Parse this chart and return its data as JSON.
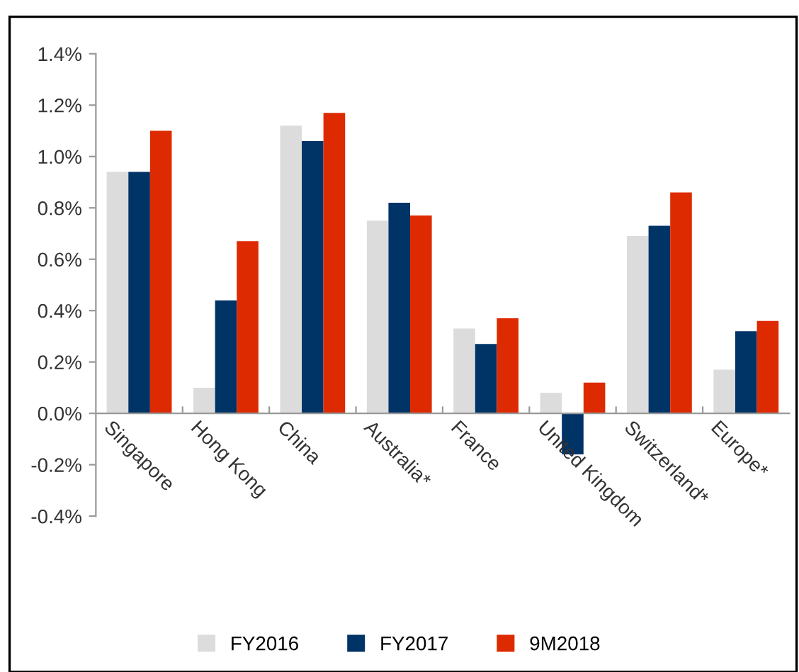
{
  "chart_data": {
    "type": "bar",
    "categories": [
      "Singapore",
      "Hong Kong",
      "China",
      "Australia*",
      "France",
      "United Kingdom",
      "Switzerland*",
      "Europe*"
    ],
    "series": [
      {
        "name": "FY2016",
        "color": "#dcdcdc",
        "values": [
          0.94,
          0.1,
          1.12,
          0.75,
          0.33,
          0.08,
          0.69,
          0.17
        ]
      },
      {
        "name": "FY2017",
        "color": "#003366",
        "values": [
          0.94,
          0.44,
          1.06,
          0.82,
          0.27,
          -0.16,
          0.73,
          0.32
        ]
      },
      {
        "name": "9M2018",
        "color": "#dd2a00",
        "values": [
          1.1,
          0.67,
          1.17,
          0.77,
          0.37,
          0.12,
          0.86,
          0.36
        ]
      }
    ],
    "ylim": [
      -0.4,
      1.4
    ],
    "yticks": [
      {
        "value": -0.4,
        "label": "-0.4%"
      },
      {
        "value": -0.2,
        "label": "-0.2%"
      },
      {
        "value": 0,
        "label": "0.0%"
      },
      {
        "value": 0.2,
        "label": "0.2%"
      },
      {
        "value": 0.4,
        "label": "0.4%"
      },
      {
        "value": 0.6,
        "label": "0.6%"
      },
      {
        "value": 0.8,
        "label": "0.8%"
      },
      {
        "value": 1.0,
        "label": "1.0%"
      },
      {
        "value": 1.2,
        "label": "1.2%"
      },
      {
        "value": 1.4,
        "label": "1.4%"
      }
    ],
    "grid": false,
    "legend": "bottom"
  }
}
